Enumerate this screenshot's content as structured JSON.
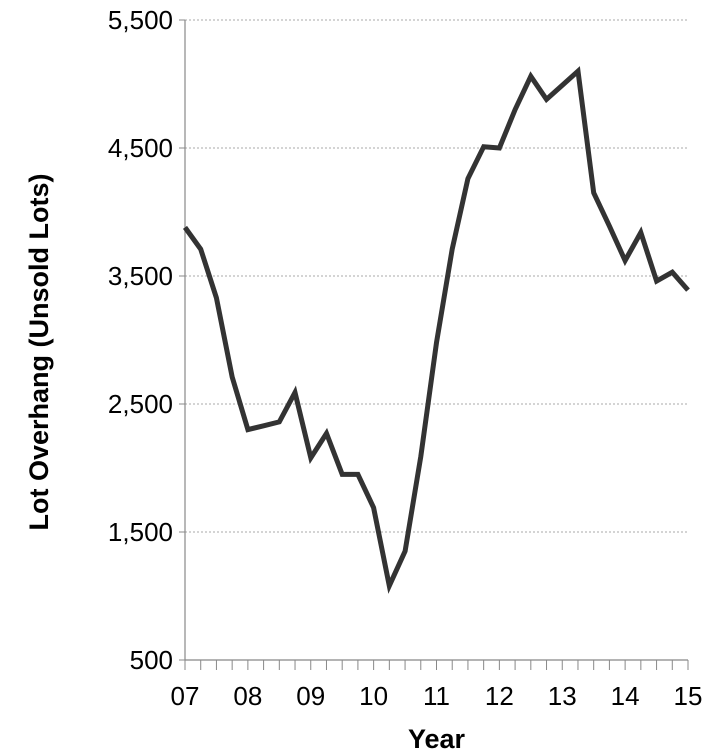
{
  "chart_data": {
    "type": "line",
    "title": "",
    "xlabel": "Year",
    "ylabel": "Lot Overhang (Unsold Lots)",
    "ylim": [
      500,
      5500
    ],
    "xlim": [
      2007,
      2015
    ],
    "y_ticks": [
      "500",
      "1,500",
      "2,500",
      "3,500",
      "4,500",
      "5,500"
    ],
    "x_ticks": [
      "07",
      "08",
      "09",
      "10",
      "11",
      "12",
      "13",
      "14",
      "15"
    ],
    "grid": "horizontal dotted",
    "legend": "none",
    "colors": {
      "line": "#333333",
      "grid": "#aaaaaa",
      "axis": "#888888"
    },
    "series": [
      {
        "x": [
          2007.0,
          2007.25,
          2007.5,
          2007.75,
          2008.0,
          2008.25,
          2008.5,
          2008.75,
          2009.0,
          2009.25,
          2009.5,
          2009.75,
          2010.0,
          2010.25,
          2010.5,
          2010.75,
          2011.0,
          2011.25,
          2011.5,
          2011.75,
          2012.0,
          2012.25,
          2012.5,
          2012.75,
          2013.0,
          2013.25,
          2013.5,
          2013.75,
          2014.0,
          2014.25,
          2014.5,
          2014.75,
          2015.0
        ],
        "values": [
          3880,
          3710,
          3330,
          2710,
          2300,
          2330,
          2360,
          2590,
          2080,
          2270,
          1950,
          1950,
          1690,
          1080,
          1350,
          2090,
          2980,
          3710,
          4260,
          4510,
          4500,
          4800,
          5060,
          4880,
          4990,
          5100,
          4150,
          3890,
          3620,
          3840,
          3460,
          3530,
          3390
        ]
      }
    ]
  }
}
